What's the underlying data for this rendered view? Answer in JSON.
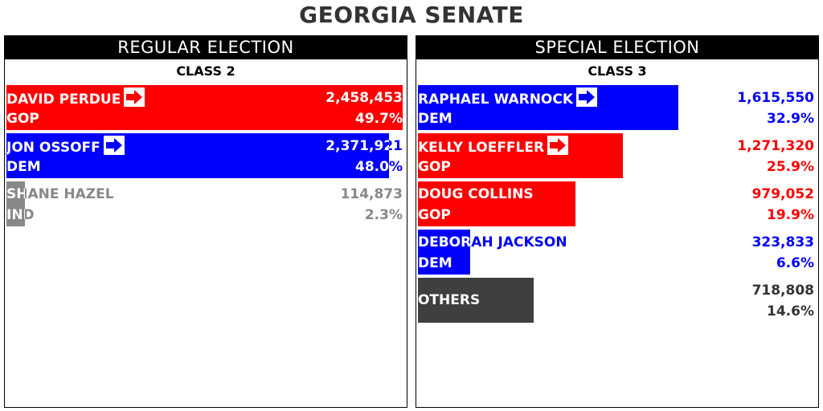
{
  "title": "GEORGIA SENATE",
  "colors": {
    "GOP": "#ff0000",
    "DEM": "#0000ff",
    "IND": "#888888",
    "OTHER": "#3f3f3f"
  },
  "chart_data": [
    {
      "type": "bar",
      "header": "REGULAR ELECTION",
      "subheader": "CLASS 2",
      "max_bar_value": 2458453,
      "candidates": [
        {
          "name": "DAVID PERDUE",
          "party": "GOP",
          "votes": 2458453,
          "votes_label": "2,458,453",
          "pct_label": "49.7%",
          "advancing": true
        },
        {
          "name": "JON OSSOFF",
          "party": "DEM",
          "votes": 2371921,
          "votes_label": "2,371,921",
          "pct_label": "48.0%",
          "advancing": true
        },
        {
          "name": "SHANE HAZEL",
          "party": "IND",
          "votes": 114873,
          "votes_label": "114,873",
          "pct_label": "2.3%",
          "advancing": false
        }
      ]
    },
    {
      "type": "bar",
      "header": "SPECIAL ELECTION",
      "subheader": "CLASS 3",
      "max_bar_value": 2458453,
      "candidates": [
        {
          "name": "RAPHAEL WARNOCK",
          "party": "DEM",
          "votes": 1615550,
          "votes_label": "1,615,550",
          "pct_label": "32.9%",
          "advancing": true
        },
        {
          "name": "KELLY LOEFFLER",
          "party": "GOP",
          "votes": 1271320,
          "votes_label": "1,271,320",
          "pct_label": "25.9%",
          "advancing": true
        },
        {
          "name": "DOUG COLLINS",
          "party": "GOP",
          "votes": 979052,
          "votes_label": "979,052",
          "pct_label": "19.9%",
          "advancing": false
        },
        {
          "name": "DEBORAH JACKSON",
          "party": "DEM",
          "votes": 323833,
          "votes_label": "323,833",
          "pct_label": "6.6%",
          "advancing": false
        },
        {
          "name": "OTHERS",
          "party": "",
          "color_key": "OTHER",
          "votes": 718808,
          "votes_label": "718,808",
          "pct_label": "14.6%",
          "advancing": false
        }
      ]
    }
  ]
}
